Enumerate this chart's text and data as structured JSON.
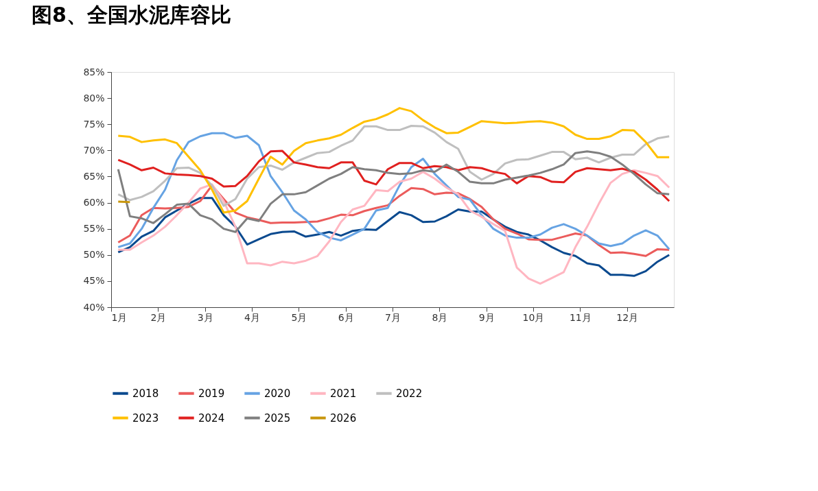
{
  "chart_data": {
    "type": "line",
    "title": "图8、全国水泥库容比",
    "x": [
      1.15,
      1.4,
      1.65,
      1.9,
      2.15,
      2.4,
      2.65,
      2.9,
      3.15,
      3.4,
      3.65,
      3.9,
      4.15,
      4.4,
      4.65,
      4.9,
      5.15,
      5.4,
      5.65,
      5.9,
      6.15,
      6.4,
      6.65,
      6.9,
      7.15,
      7.4,
      7.65,
      7.9,
      8.15,
      8.4,
      8.65,
      8.9,
      9.15,
      9.4,
      9.65,
      9.9,
      10.15,
      10.4,
      10.65,
      10.9,
      11.15,
      11.4,
      11.65,
      11.9,
      12.15,
      12.4,
      12.65,
      12.9
    ],
    "series": [
      {
        "name": "2018",
        "color": "#0b4a8f",
        "values": [
          50.5,
          51.5,
          53.5,
          54.6,
          57.2,
          58.5,
          59.8,
          60.9,
          60.9,
          57.6,
          55.4,
          52,
          53,
          54,
          54.4,
          54.5,
          53.5,
          53.9,
          54.4,
          53.7,
          54.6,
          54.9,
          54.8,
          56.5,
          58.2,
          57.6,
          56.3,
          56.4,
          57.4,
          58.7,
          58.3,
          58.3,
          56.8,
          55.4,
          54.4,
          53.9,
          52.8,
          51.5,
          50.4,
          49.8,
          48.4,
          48,
          46.2,
          46.2,
          46,
          46.9,
          48.7,
          50
        ]
      },
      {
        "name": "2019",
        "color": "#eb5b5b",
        "values": [
          52.4,
          53.7,
          57.6,
          59,
          58.9,
          59,
          59.2,
          60.3,
          63.3,
          60.7,
          58.1,
          57.2,
          56.7,
          56.1,
          56.2,
          56.2,
          56.3,
          56.4,
          57,
          57.7,
          57.6,
          58.4,
          59,
          59.5,
          61.3,
          62.8,
          62.6,
          61.6,
          61.9,
          61.8,
          60.7,
          59.2,
          56.8,
          55,
          54.1,
          53,
          52.9,
          52.9,
          53.5,
          54.1,
          53.7,
          51.9,
          50.4,
          50.5,
          50.2,
          49.8,
          51.1,
          51
        ]
      },
      {
        "name": "2020",
        "color": "#66a3e3",
        "values": [
          51.5,
          52.2,
          55,
          59,
          62.5,
          68.1,
          71.6,
          72.7,
          73.3,
          73.3,
          72.4,
          72.8,
          71,
          65.1,
          62,
          58.5,
          56.8,
          54.4,
          53.3,
          52.8,
          53.9,
          55,
          58.5,
          59,
          63.3,
          66.8,
          68.4,
          65.5,
          63.3,
          61.1,
          60.6,
          57.6,
          55,
          53.7,
          53.3,
          53.3,
          53.9,
          55.2,
          55.9,
          55,
          53.7,
          52.2,
          51.7,
          52.2,
          53.7,
          54.7,
          53.7,
          51.1
        ]
      },
      {
        "name": "2021",
        "color": "#ffb6c1",
        "values": [
          51,
          51,
          52.4,
          53.7,
          55.4,
          57.6,
          60,
          62.7,
          63.5,
          60.3,
          55.4,
          48.4,
          48.4,
          48,
          48.7,
          48.4,
          48.9,
          49.8,
          52.6,
          56.3,
          58.7,
          59.4,
          62.4,
          62.2,
          64,
          64.6,
          65.9,
          64.6,
          62.9,
          61.6,
          58.5,
          57.3,
          55.9,
          54.6,
          47.6,
          45.5,
          44.5,
          45.6,
          46.7,
          51.5,
          55.4,
          59.8,
          63.8,
          65.5,
          66.2,
          65.7,
          65.1,
          62.9
        ]
      },
      {
        "name": "2022",
        "color": "#bfbfbf",
        "values": [
          61.6,
          60.5,
          61.1,
          62.2,
          64.2,
          66.6,
          66.7,
          65.7,
          63.3,
          59.4,
          60.7,
          64.6,
          66.8,
          67.1,
          66.3,
          67.7,
          68.6,
          69.5,
          69.7,
          70.9,
          71.9,
          74.6,
          74.6,
          73.9,
          73.9,
          74.7,
          74.6,
          73.4,
          71.6,
          70.3,
          65.9,
          64.4,
          65.5,
          67.5,
          68.2,
          68.3,
          69,
          69.7,
          69.7,
          68.3,
          68.6,
          67.7,
          68.6,
          69.2,
          69.2,
          71.2,
          72.3,
          72.7
        ]
      },
      {
        "name": "2023",
        "color": "#ffc000",
        "values": [
          72.8,
          72.6,
          71.6,
          71.9,
          72.1,
          71.4,
          68.8,
          66.2,
          62.5,
          58.1,
          58.5,
          60.3,
          64.6,
          68.8,
          67.3,
          69.9,
          71.4,
          71.9,
          72.3,
          73,
          74.3,
          75.5,
          76,
          76.9,
          78.1,
          77.5,
          75.8,
          74.4,
          73.3,
          73.4,
          74.5,
          75.6,
          75.4,
          75.2,
          75.3,
          75.5,
          75.6,
          75.3,
          74.6,
          73,
          72.2,
          72.2,
          72.7,
          73.9,
          73.8,
          71.6,
          68.7,
          68.7
        ]
      },
      {
        "name": "2024",
        "color": "#e0201f",
        "values": [
          68.2,
          67.3,
          66.2,
          66.7,
          65.6,
          65.4,
          65.3,
          65.1,
          64.6,
          63.1,
          63.2,
          65.1,
          67.9,
          69.8,
          69.9,
          67.7,
          67.3,
          66.8,
          66.6,
          67.7,
          67.7,
          64.2,
          63.5,
          66.4,
          67.6,
          67.6,
          66.6,
          67,
          66.8,
          66.2,
          66.8,
          66.6,
          65.9,
          65.5,
          63.7,
          65.1,
          64.9,
          64,
          63.9,
          65.9,
          66.6,
          66.4,
          66.2,
          66.5,
          65.9,
          64.4,
          62.5,
          60.3
        ]
      },
      {
        "name": "2025",
        "color": "#7f7f7f",
        "values": [
          66.4,
          57.4,
          57,
          56.1,
          57.8,
          59.6,
          59.8,
          57.6,
          56.8,
          55,
          54.4,
          57,
          56.5,
          59.8,
          61.6,
          61.6,
          62,
          63.3,
          64.6,
          65.5,
          66.8,
          66.4,
          66.2,
          65.7,
          65.5,
          65.6,
          66.2,
          65.9,
          67.3,
          65.9,
          64,
          63.7,
          63.7,
          64.4,
          64.8,
          65.2,
          65.7,
          66.4,
          67.3,
          69.5,
          69.8,
          69.5,
          68.8,
          67.3,
          65.5,
          63.5,
          61.8,
          61.6
        ]
      },
      {
        "name": "2026",
        "color": "#c8960c",
        "values": [
          60.2,
          60.1,
          null,
          null,
          null,
          null,
          null,
          null,
          null,
          null,
          null,
          null,
          null,
          null,
          null,
          null,
          null,
          null,
          null,
          null,
          null,
          null,
          null,
          null,
          null,
          null,
          null,
          null,
          null,
          null,
          null,
          null,
          null,
          null,
          null,
          null,
          null,
          null,
          null,
          null,
          null,
          null,
          null,
          null,
          null,
          null,
          null,
          null
        ]
      }
    ],
    "xlim": [
      1,
      13
    ],
    "xticks": [
      {
        "value": 1,
        "label": "1月"
      },
      {
        "value": 2,
        "label": "2月"
      },
      {
        "value": 3,
        "label": "3月"
      },
      {
        "value": 4,
        "label": "4月"
      },
      {
        "value": 5,
        "label": "5月"
      },
      {
        "value": 6,
        "label": "6月"
      },
      {
        "value": 7,
        "label": "7月"
      },
      {
        "value": 8,
        "label": "8月"
      },
      {
        "value": 9,
        "label": "9月"
      },
      {
        "value": 10,
        "label": "10月"
      },
      {
        "value": 11,
        "label": "11月"
      },
      {
        "value": 12,
        "label": "12月"
      }
    ],
    "ylim": [
      40,
      85
    ],
    "yticks": [
      {
        "value": 40,
        "label": "40%"
      },
      {
        "value": 45,
        "label": "45%"
      },
      {
        "value": 50,
        "label": "50%"
      },
      {
        "value": 55,
        "label": "55%"
      },
      {
        "value": 60,
        "label": "60%"
      },
      {
        "value": 65,
        "label": "65%"
      },
      {
        "value": 70,
        "label": "70%"
      },
      {
        "value": 75,
        "label": "75%"
      },
      {
        "value": 80,
        "label": "80%"
      },
      {
        "value": 85,
        "label": "85%"
      }
    ],
    "grid": false,
    "legend": "bottom",
    "marker": "none",
    "line_style": "solid"
  }
}
